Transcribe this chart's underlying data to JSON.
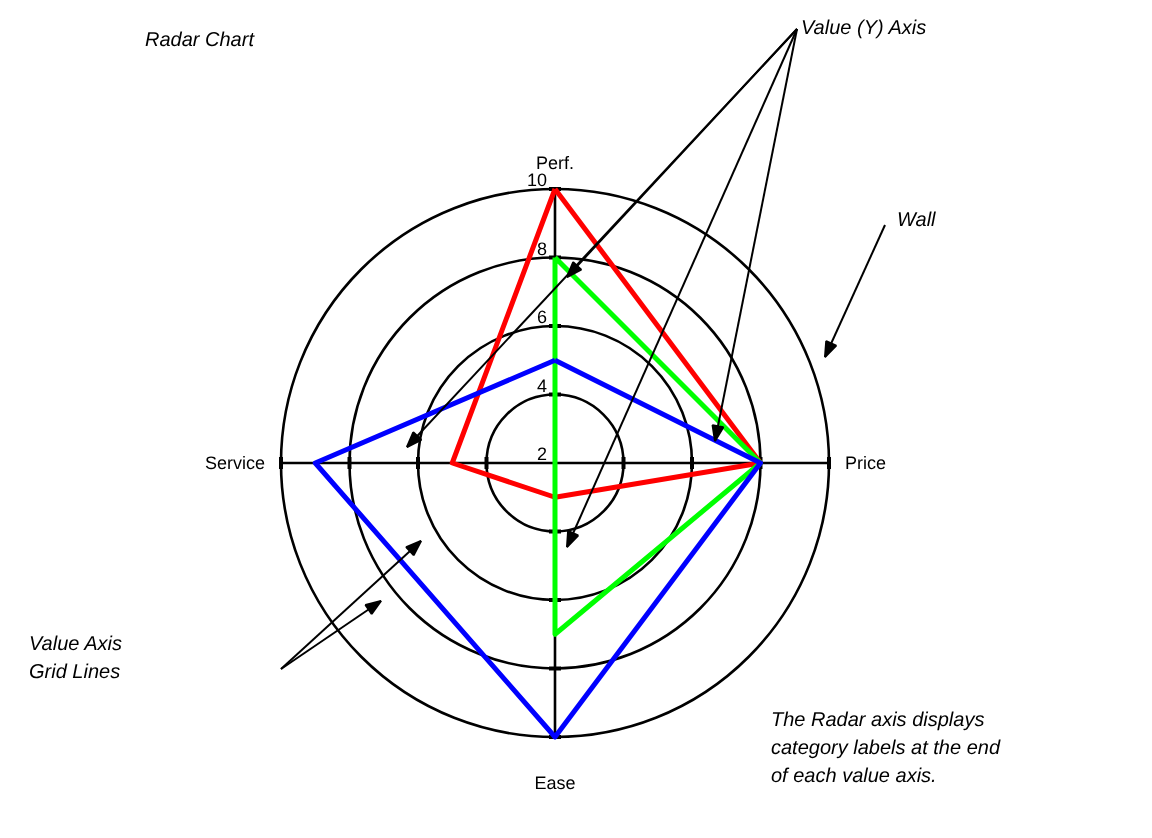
{
  "chart_data": {
    "type": "radar",
    "title": "Radar Chart",
    "categories": [
      "Perf.",
      "Price",
      "Ease",
      "Service"
    ],
    "series": [
      {
        "color": "#ff0000",
        "values": [
          10,
          8,
          3,
          5
        ]
      },
      {
        "color": "#00ff00",
        "values": [
          8,
          8,
          7,
          2
        ]
      },
      {
        "color": "#0000ff",
        "values": [
          5,
          8,
          10,
          9
        ]
      }
    ],
    "ylim": [
      2,
      10
    ],
    "yticks": [
      2,
      4,
      6,
      8,
      10
    ],
    "grid": true,
    "annotations": [
      "Value (Y) Axis",
      "Wall",
      "Value Axis\nGrid Lines",
      "The Radar axis displays\ncategory labels at the end\nof each value axis."
    ]
  }
}
